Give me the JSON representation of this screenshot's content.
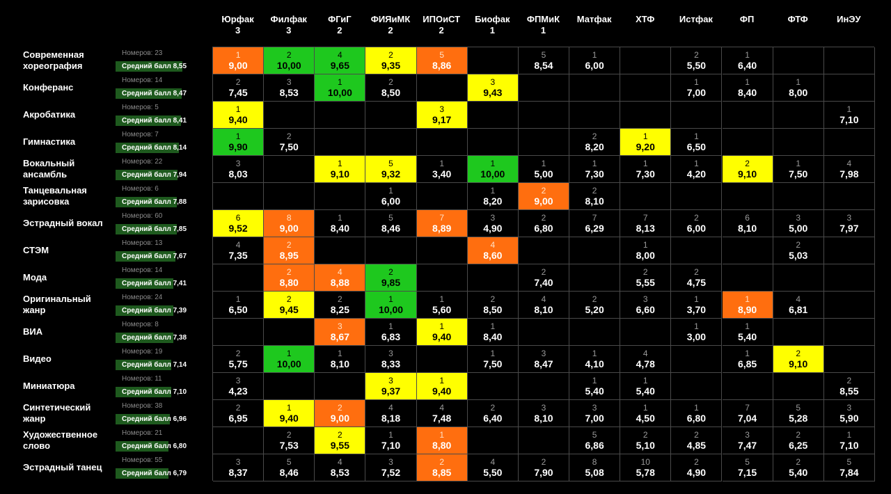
{
  "faculties": [
    {
      "name": "Юрфак",
      "num": "3"
    },
    {
      "name": "Филфак",
      "num": "3"
    },
    {
      "name": "ФГиГ",
      "num": "2"
    },
    {
      "name": "ФИЯиМК",
      "num": "2"
    },
    {
      "name": "ИПОиСТ",
      "num": "2"
    },
    {
      "name": "Биофак",
      "num": "1"
    },
    {
      "name": "ФПМиК",
      "num": "1"
    },
    {
      "name": "Матфак",
      "num": ""
    },
    {
      "name": "ХТФ",
      "num": ""
    },
    {
      "name": "Истфак",
      "num": ""
    },
    {
      "name": "ФП",
      "num": ""
    },
    {
      "name": "ФТФ",
      "num": ""
    },
    {
      "name": "ИнЭУ",
      "num": ""
    }
  ],
  "colors": {
    "orange": "#ff6e0f",
    "yellow": "#ffff00",
    "green": "#1ec81e",
    "bar": "#1e5a1e",
    "grid": "#4a4a4a"
  },
  "categories": [
    {
      "name": "Современная хореография",
      "count": "Номеров: 23",
      "avg": "Средний балл 8,55",
      "avg_fraction": 0.855,
      "cells": [
        [
          "1",
          "9,00",
          "orange"
        ],
        [
          "2",
          "10,00",
          "green"
        ],
        [
          "4",
          "9,65",
          "green"
        ],
        [
          "2",
          "9,35",
          "yellow"
        ],
        [
          "5",
          "8,86",
          "orange"
        ],
        [
          "",
          ""
        ],
        [
          "5",
          "8,54"
        ],
        [
          "1",
          "6,00"
        ],
        [
          "",
          ""
        ],
        [
          "2",
          "5,50"
        ],
        [
          "1",
          "6,40"
        ],
        [
          "",
          ""
        ],
        [
          "",
          ""
        ]
      ]
    },
    {
      "name": "Конферанс",
      "count": "Номеров: 14",
      "avg": "Средний балл 8,47",
      "avg_fraction": 0.847,
      "cells": [
        [
          "2",
          "7,45"
        ],
        [
          "3",
          "8,53"
        ],
        [
          "1",
          "10,00",
          "green"
        ],
        [
          "2",
          "8,50"
        ],
        [
          "",
          ""
        ],
        [
          "3",
          "9,43",
          "yellow"
        ],
        [
          "",
          ""
        ],
        [
          "",
          ""
        ],
        [
          "",
          ""
        ],
        [
          "1",
          "7,00"
        ],
        [
          "1",
          "8,40"
        ],
        [
          "1",
          "8,00"
        ],
        [
          "",
          ""
        ]
      ]
    },
    {
      "name": "Акробатика",
      "count": "Номеров: 5",
      "avg": "Средний балл 8,41",
      "avg_fraction": 0.841,
      "cells": [
        [
          "1",
          "9,40",
          "yellow"
        ],
        [
          "",
          ""
        ],
        [
          "",
          ""
        ],
        [
          "",
          ""
        ],
        [
          "3",
          "9,17",
          "yellow"
        ],
        [
          "",
          ""
        ],
        [
          "",
          ""
        ],
        [
          "",
          ""
        ],
        [
          "",
          ""
        ],
        [
          "",
          ""
        ],
        [
          "",
          ""
        ],
        [
          "",
          ""
        ],
        [
          "1",
          "7,10"
        ]
      ]
    },
    {
      "name": "Гимнастика",
      "count": "Номеров: 7",
      "avg": "Средний балл 8,14",
      "avg_fraction": 0.814,
      "cells": [
        [
          "1",
          "9,90",
          "green"
        ],
        [
          "2",
          "7,50"
        ],
        [
          "",
          ""
        ],
        [
          "",
          ""
        ],
        [
          "",
          ""
        ],
        [
          "",
          ""
        ],
        [
          "",
          ""
        ],
        [
          "2",
          "8,20"
        ],
        [
          "1",
          "9,20",
          "yellow"
        ],
        [
          "1",
          "6,50"
        ],
        [
          "",
          ""
        ],
        [
          "",
          ""
        ],
        [
          "",
          ""
        ]
      ]
    },
    {
      "name": "Вокальный ансамбль",
      "count": "Номеров: 22",
      "avg": "Средний балл 7,94",
      "avg_fraction": 0.794,
      "cells": [
        [
          "3",
          "8,03"
        ],
        [
          "",
          ""
        ],
        [
          "1",
          "9,10",
          "yellow"
        ],
        [
          "5",
          "9,32",
          "yellow"
        ],
        [
          "1",
          "3,40"
        ],
        [
          "1",
          "10,00",
          "green"
        ],
        [
          "1",
          "5,00"
        ],
        [
          "1",
          "7,30"
        ],
        [
          "1",
          "7,30"
        ],
        [
          "1",
          "4,20"
        ],
        [
          "2",
          "9,10",
          "yellow"
        ],
        [
          "1",
          "7,50"
        ],
        [
          "4",
          "7,98"
        ]
      ]
    },
    {
      "name": "Танцевальная зарисовка",
      "count": "Номеров: 6",
      "avg": "Средний балл 7,88",
      "avg_fraction": 0.788,
      "cells": [
        [
          "",
          ""
        ],
        [
          "",
          ""
        ],
        [
          "",
          ""
        ],
        [
          "1",
          "6,00"
        ],
        [
          "",
          ""
        ],
        [
          "1",
          "8,20"
        ],
        [
          "2",
          "9,00",
          "orange"
        ],
        [
          "2",
          "8,10"
        ],
        [
          "",
          ""
        ],
        [
          "",
          ""
        ],
        [
          "",
          ""
        ],
        [
          "",
          ""
        ],
        [
          "",
          ""
        ]
      ]
    },
    {
      "name": "Эстрадный вокал",
      "count": "Номеров: 60",
      "avg": "Средний балл 7,85",
      "avg_fraction": 0.785,
      "cells": [
        [
          "6",
          "9,52",
          "yellow"
        ],
        [
          "8",
          "9,00",
          "orange"
        ],
        [
          "1",
          "8,40"
        ],
        [
          "5",
          "8,46"
        ],
        [
          "7",
          "8,89",
          "orange"
        ],
        [
          "3",
          "4,90"
        ],
        [
          "2",
          "6,80"
        ],
        [
          "7",
          "6,29"
        ],
        [
          "7",
          "8,13"
        ],
        [
          "2",
          "6,00"
        ],
        [
          "6",
          "8,10"
        ],
        [
          "3",
          "5,00"
        ],
        [
          "3",
          "7,97"
        ]
      ]
    },
    {
      "name": "СТЭМ",
      "count": "Номеров: 13",
      "avg": "Средний балл 7,67",
      "avg_fraction": 0.767,
      "cells": [
        [
          "4",
          "7,35"
        ],
        [
          "2",
          "8,95",
          "orange"
        ],
        [
          "",
          ""
        ],
        [
          "",
          ""
        ],
        [
          "",
          ""
        ],
        [
          "4",
          "8,60",
          "orange"
        ],
        [
          "",
          ""
        ],
        [
          "",
          ""
        ],
        [
          "1",
          "8,00"
        ],
        [
          "",
          ""
        ],
        [
          "",
          ""
        ],
        [
          "2",
          "5,03"
        ],
        [
          "",
          ""
        ]
      ]
    },
    {
      "name": "Мода",
      "count": "Номеров: 14",
      "avg": "Средний балл 7,41",
      "avg_fraction": 0.741,
      "cells": [
        [
          "",
          ""
        ],
        [
          "2",
          "8,80",
          "orange"
        ],
        [
          "4",
          "8,88",
          "orange"
        ],
        [
          "2",
          "9,85",
          "green"
        ],
        [
          "",
          ""
        ],
        [
          "",
          ""
        ],
        [
          "2",
          "7,40"
        ],
        [
          "",
          ""
        ],
        [
          "2",
          "5,55"
        ],
        [
          "2",
          "4,75"
        ],
        [
          "",
          ""
        ],
        [
          "",
          ""
        ],
        [
          "",
          ""
        ]
      ]
    },
    {
      "name": "Оригинальный жанр",
      "count": "Номеров: 24",
      "avg": "Средний балл 7,39",
      "avg_fraction": 0.739,
      "cells": [
        [
          "1",
          "6,50"
        ],
        [
          "2",
          "9,45",
          "yellow"
        ],
        [
          "2",
          "8,25"
        ],
        [
          "1",
          "10,00",
          "green"
        ],
        [
          "1",
          "5,60"
        ],
        [
          "2",
          "8,50"
        ],
        [
          "4",
          "8,10"
        ],
        [
          "2",
          "5,20"
        ],
        [
          "3",
          "6,60"
        ],
        [
          "1",
          "3,70"
        ],
        [
          "1",
          "8,90",
          "orange"
        ],
        [
          "4",
          "6,81"
        ],
        [
          "",
          ""
        ]
      ]
    },
    {
      "name": "ВИА",
      "count": "Номеров: 8",
      "avg": "Средний балл 7,38",
      "avg_fraction": 0.738,
      "cells": [
        [
          "",
          ""
        ],
        [
          "",
          ""
        ],
        [
          "3",
          "8,67",
          "orange"
        ],
        [
          "1",
          "6,83"
        ],
        [
          "1",
          "9,40",
          "yellow"
        ],
        [
          "1",
          "8,40"
        ],
        [
          "",
          ""
        ],
        [
          "",
          ""
        ],
        [
          "",
          ""
        ],
        [
          "1",
          "3,00"
        ],
        [
          "1",
          "5,40"
        ],
        [
          "",
          ""
        ],
        [
          "",
          ""
        ]
      ]
    },
    {
      "name": "Видео",
      "count": "Номеров: 19",
      "avg": "Средний балл 7,14",
      "avg_fraction": 0.714,
      "cells": [
        [
          "2",
          "5,75"
        ],
        [
          "1",
          "10,00",
          "green"
        ],
        [
          "1",
          "8,10"
        ],
        [
          "3",
          "8,33"
        ],
        [
          "",
          ""
        ],
        [
          "1",
          "7,50"
        ],
        [
          "3",
          "8,47"
        ],
        [
          "1",
          "4,10"
        ],
        [
          "4",
          "4,78"
        ],
        [
          "",
          ""
        ],
        [
          "1",
          "6,85"
        ],
        [
          "2",
          "9,10",
          "yellow"
        ],
        [
          "",
          ""
        ]
      ]
    },
    {
      "name": "Миниатюра",
      "count": "Номеров: 11",
      "avg": "Средний балл 7,10",
      "avg_fraction": 0.71,
      "cells": [
        [
          "3",
          "4,23"
        ],
        [
          "",
          ""
        ],
        [
          "",
          ""
        ],
        [
          "3",
          "9,37",
          "yellow"
        ],
        [
          "1",
          "9,40",
          "yellow"
        ],
        [
          "",
          ""
        ],
        [
          "",
          ""
        ],
        [
          "1",
          "5,40"
        ],
        [
          "1",
          "5,40"
        ],
        [
          "",
          ""
        ],
        [
          "",
          ""
        ],
        [
          "",
          ""
        ],
        [
          "2",
          "8,55"
        ]
      ]
    },
    {
      "name": "Синтетический жанр",
      "count": "Номеров: 38",
      "avg": "Средний балл 6,96",
      "avg_fraction": 0.696,
      "cells": [
        [
          "2",
          "6,95"
        ],
        [
          "1",
          "9,40",
          "yellow"
        ],
        [
          "2",
          "9,00",
          "orange"
        ],
        [
          "4",
          "8,18"
        ],
        [
          "4",
          "7,48"
        ],
        [
          "2",
          "6,40"
        ],
        [
          "3",
          "8,10"
        ],
        [
          "3",
          "7,00"
        ],
        [
          "1",
          "4,50"
        ],
        [
          "1",
          "6,80"
        ],
        [
          "7",
          "7,04"
        ],
        [
          "5",
          "5,28"
        ],
        [
          "3",
          "5,90"
        ]
      ]
    },
    {
      "name": "Художественное слово",
      "count": "Номеров: 21",
      "avg": "Средний балл 6,80",
      "avg_fraction": 0.68,
      "cells": [
        [
          "",
          ""
        ],
        [
          "2",
          "7,53"
        ],
        [
          "2",
          "9,55",
          "yellow"
        ],
        [
          "1",
          "7,10"
        ],
        [
          "1",
          "8,80",
          "orange"
        ],
        [
          "",
          ""
        ],
        [
          "",
          ""
        ],
        [
          "5",
          "6,86"
        ],
        [
          "2",
          "5,10"
        ],
        [
          "2",
          "4,85"
        ],
        [
          "3",
          "7,47"
        ],
        [
          "2",
          "6,25"
        ],
        [
          "1",
          "7,10"
        ]
      ]
    },
    {
      "name": "Эстрадный танец",
      "count": "Номеров: 55",
      "avg": "Средний балл 6,79",
      "avg_fraction": 0.679,
      "cells": [
        [
          "3",
          "8,37"
        ],
        [
          "5",
          "8,46"
        ],
        [
          "4",
          "8,53"
        ],
        [
          "3",
          "7,52"
        ],
        [
          "2",
          "8,85",
          "orange"
        ],
        [
          "4",
          "5,50"
        ],
        [
          "2",
          "7,90"
        ],
        [
          "8",
          "5,08"
        ],
        [
          "10",
          "5,78"
        ],
        [
          "2",
          "4,90"
        ],
        [
          "5",
          "7,15"
        ],
        [
          "2",
          "5,40"
        ],
        [
          "5",
          "7,84"
        ]
      ]
    }
  ]
}
